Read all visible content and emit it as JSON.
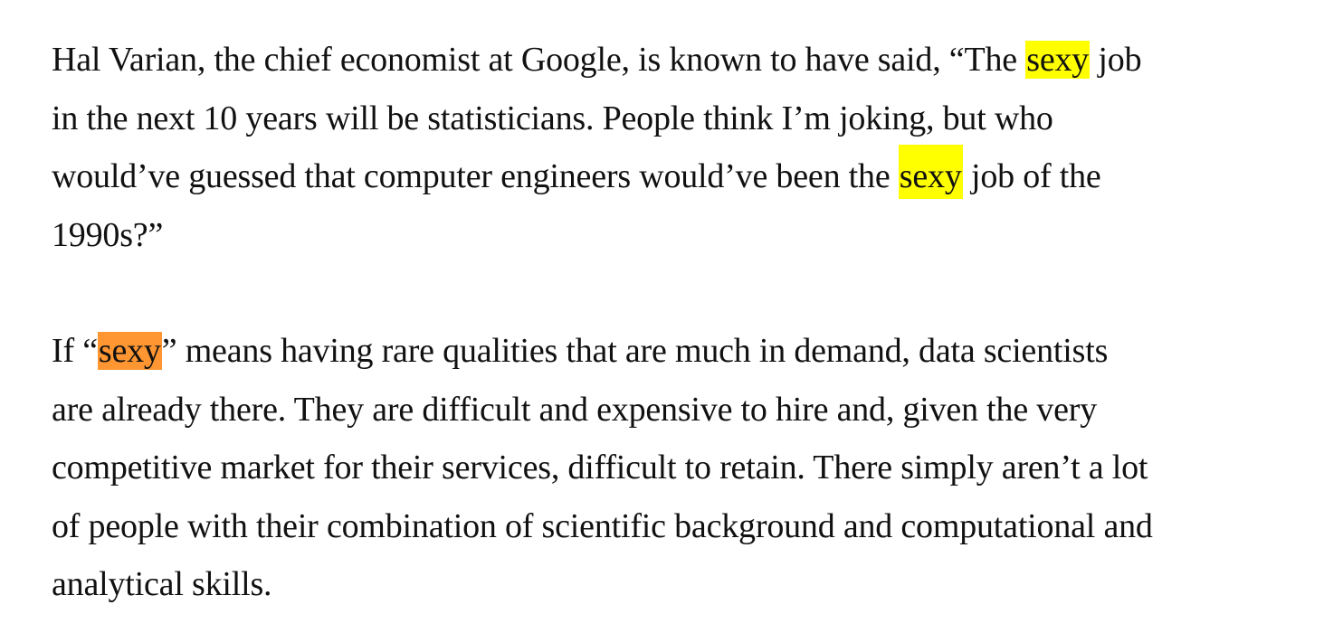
{
  "highlight_colors": {
    "match": "#ffff00",
    "current_match": "#ff9632"
  },
  "paragraphs": [
    {
      "lines": [
        {
          "before": "Hal Varian, the chief economist at Google, is known to have said, “The ",
          "match": "sexy",
          "after": " job"
        },
        {
          "text": "in the next 10 years will be statisticians. People think I’m joking, but who"
        },
        {
          "before": "would’ve guessed that computer engineers would’ve been the ",
          "match": "sexy",
          "after": " job of the"
        },
        {
          "text": "1990s?”"
        }
      ]
    },
    {
      "lines": [
        {
          "before": "If “",
          "match": "sexy",
          "after": "” means having rare qualities that are much in demand, data scientists"
        },
        {
          "text": "are already there. They are difficult and expensive to hire and, given the very"
        },
        {
          "text": "competitive market for their services, difficult to retain. There simply aren’t a lot"
        },
        {
          "text": "of people with their combination of scientific background and computational and"
        },
        {
          "text": "analytical skills."
        }
      ]
    }
  ]
}
